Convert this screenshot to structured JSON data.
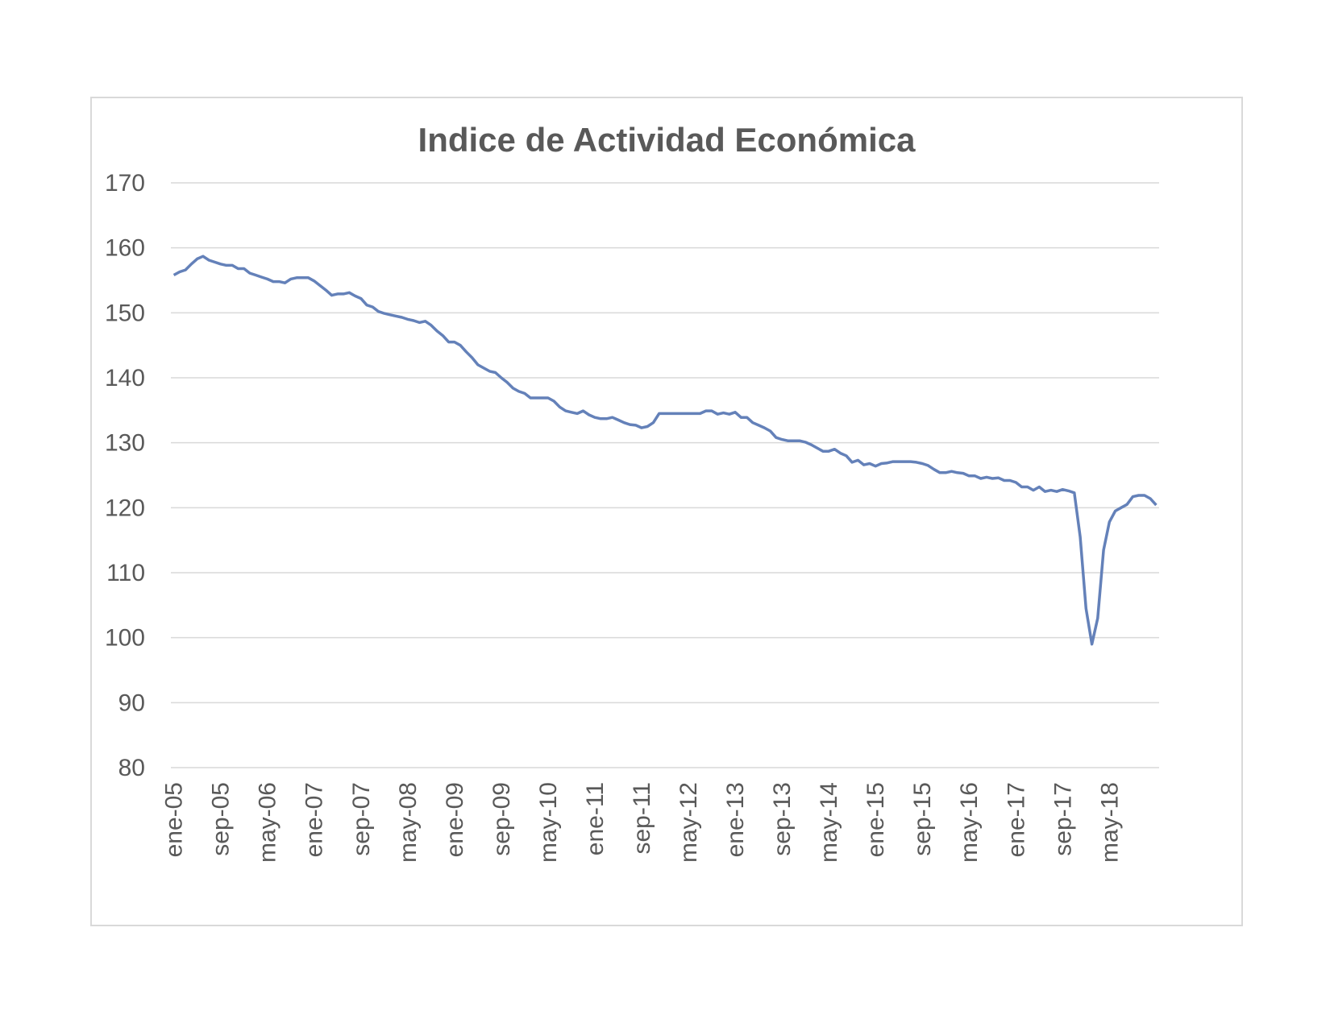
{
  "chart_data": {
    "type": "line",
    "title": "Indice de Actividad Económica",
    "xlabel": "",
    "ylabel": "",
    "ylim": [
      80,
      170
    ],
    "yticks": [
      80,
      90,
      100,
      110,
      120,
      130,
      140,
      150,
      160,
      170
    ],
    "grid": true,
    "legend": "none",
    "line_color": "#6481b9",
    "x_start": "ene-05",
    "xticks": [
      {
        "index": 0,
        "label": "ene-05"
      },
      {
        "index": 8,
        "label": "sep-05"
      },
      {
        "index": 16,
        "label": "may-06"
      },
      {
        "index": 24,
        "label": "ene-07"
      },
      {
        "index": 32,
        "label": "sep-07"
      },
      {
        "index": 40,
        "label": "may-08"
      },
      {
        "index": 48,
        "label": "ene-09"
      },
      {
        "index": 56,
        "label": "sep-09"
      },
      {
        "index": 64,
        "label": "may-10"
      },
      {
        "index": 72,
        "label": "ene-11"
      },
      {
        "index": 80,
        "label": "sep-11"
      },
      {
        "index": 88,
        "label": "may-12"
      },
      {
        "index": 96,
        "label": "ene-13"
      },
      {
        "index": 104,
        "label": "sep-13"
      },
      {
        "index": 112,
        "label": "may-14"
      },
      {
        "index": 120,
        "label": "ene-15"
      },
      {
        "index": 128,
        "label": "sep-15"
      },
      {
        "index": 136,
        "label": "may-16"
      },
      {
        "index": 144,
        "label": "ene-17"
      },
      {
        "index": 152,
        "label": "sep-17"
      },
      {
        "index": 160,
        "label": "may-18"
      }
    ],
    "values": [
      155.8,
      156.3,
      156.6,
      157.5,
      158.3,
      158.7,
      158.1,
      157.8,
      157.5,
      157.3,
      157.3,
      156.8,
      156.8,
      156.1,
      155.8,
      155.5,
      155.2,
      154.8,
      154.8,
      154.6,
      155.2,
      155.4,
      155.4,
      155.4,
      154.9,
      154.2,
      153.5,
      152.7,
      152.9,
      152.9,
      153.1,
      152.6,
      152.2,
      151.2,
      150.9,
      150.2,
      149.9,
      149.7,
      149.5,
      149.3,
      149.0,
      148.8,
      148.5,
      148.7,
      148.1,
      147.2,
      146.5,
      145.5,
      145.5,
      145.0,
      144.0,
      143.1,
      142.0,
      141.5,
      141.0,
      140.8,
      140.0,
      139.3,
      138.4,
      137.9,
      137.6,
      136.9,
      136.9,
      136.9,
      136.9,
      136.4,
      135.5,
      134.9,
      134.7,
      134.5,
      134.9,
      134.3,
      133.9,
      133.7,
      133.7,
      133.9,
      133.5,
      133.1,
      132.8,
      132.7,
      132.3,
      132.5,
      133.1,
      134.5,
      134.5,
      134.5,
      134.5,
      134.5,
      134.5,
      134.5,
      134.5,
      134.9,
      134.9,
      134.4,
      134.6,
      134.4,
      134.7,
      133.9,
      133.9,
      133.1,
      132.7,
      132.3,
      131.8,
      130.8,
      130.5,
      130.3,
      130.3,
      130.3,
      130.1,
      129.7,
      129.2,
      128.7,
      128.7,
      129.0,
      128.4,
      128.0,
      127.0,
      127.3,
      126.6,
      126.8,
      126.4,
      126.8,
      126.9,
      127.1,
      127.1,
      127.1,
      127.1,
      127.0,
      126.8,
      126.5,
      125.9,
      125.4,
      125.4,
      125.6,
      125.4,
      125.3,
      124.9,
      124.9,
      124.5,
      124.7,
      124.5,
      124.6,
      124.2,
      124.2,
      123.9,
      123.2,
      123.2,
      122.7,
      123.2,
      122.5,
      122.7,
      122.5,
      122.8,
      122.6,
      122.3,
      115.5,
      104.5,
      99.0,
      103.0,
      113.5,
      117.8,
      119.5,
      120.0,
      120.5,
      121.7,
      121.9,
      121.9,
      121.4,
      120.4
    ]
  }
}
